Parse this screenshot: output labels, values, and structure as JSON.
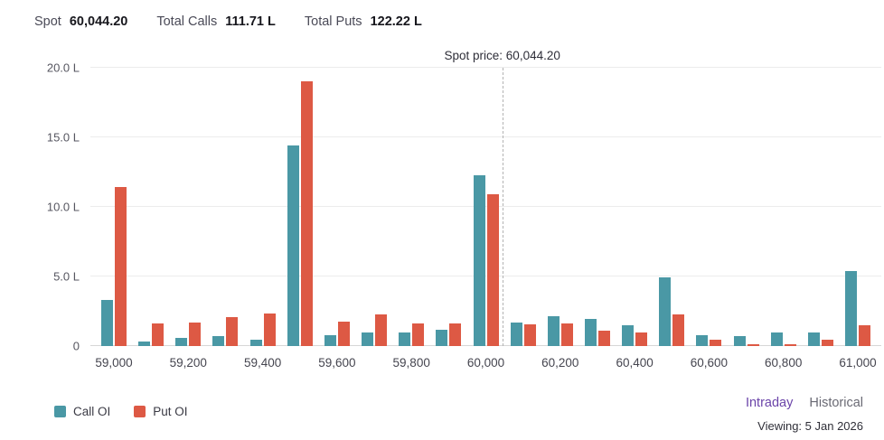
{
  "header": {
    "spot_label": "Spot",
    "spot_value": "60,044.20",
    "total_calls_label": "Total Calls",
    "total_calls_value": "111.71 L",
    "total_puts_label": "Total Puts",
    "total_puts_value": "122.22 L"
  },
  "chart_data": {
    "type": "bar",
    "title": "",
    "unit": "L",
    "strikes": [
      59000,
      59100,
      59200,
      59300,
      59400,
      59500,
      59600,
      59700,
      59800,
      59900,
      60000,
      60100,
      60200,
      60300,
      60400,
      60500,
      60600,
      60700,
      60800,
      60900,
      61000
    ],
    "series": [
      {
        "name": "Call OI",
        "color": "#4a98a5",
        "values": [
          3.3,
          0.3,
          0.6,
          0.7,
          0.45,
          14.4,
          0.8,
          1.0,
          1.0,
          1.2,
          12.3,
          1.7,
          2.15,
          1.95,
          1.5,
          4.95,
          0.8,
          0.7,
          1.0,
          1.0,
          5.4
        ]
      },
      {
        "name": "Put OI",
        "color": "#dd5944",
        "values": [
          11.4,
          1.6,
          1.7,
          2.1,
          2.35,
          19.0,
          1.75,
          2.3,
          1.65,
          1.6,
          10.9,
          1.55,
          1.6,
          1.1,
          0.95,
          2.3,
          0.45,
          0.15,
          0.15,
          0.45,
          1.5
        ]
      }
    ],
    "ylim": [
      0,
      20
    ],
    "y_ticks": [
      {
        "value": 0,
        "label": "0"
      },
      {
        "value": 5,
        "label": "5.0 L"
      },
      {
        "value": 10,
        "label": "10.0 L"
      },
      {
        "value": 15,
        "label": "15.0 L"
      },
      {
        "value": 20,
        "label": "20.0 L"
      }
    ],
    "x_tick_labels": [
      "59,000",
      "59,200",
      "59,400",
      "59,600",
      "59,800",
      "60,000",
      "60,200",
      "60,400",
      "60,600",
      "60,800",
      "61,000"
    ],
    "spot_line": {
      "value": 60044.2,
      "label": "Spot price: 60,044.20"
    },
    "grid": "horizontal",
    "legend_position": "bottom-left"
  },
  "legend": [
    {
      "label": "Call OI",
      "color": "#4a98a5"
    },
    {
      "label": "Put OI",
      "color": "#dd5944"
    }
  ],
  "footer": {
    "intraday_label": "Intraday",
    "historical_label": "Historical",
    "viewing_label": "Viewing: 5 Jan 2026"
  }
}
